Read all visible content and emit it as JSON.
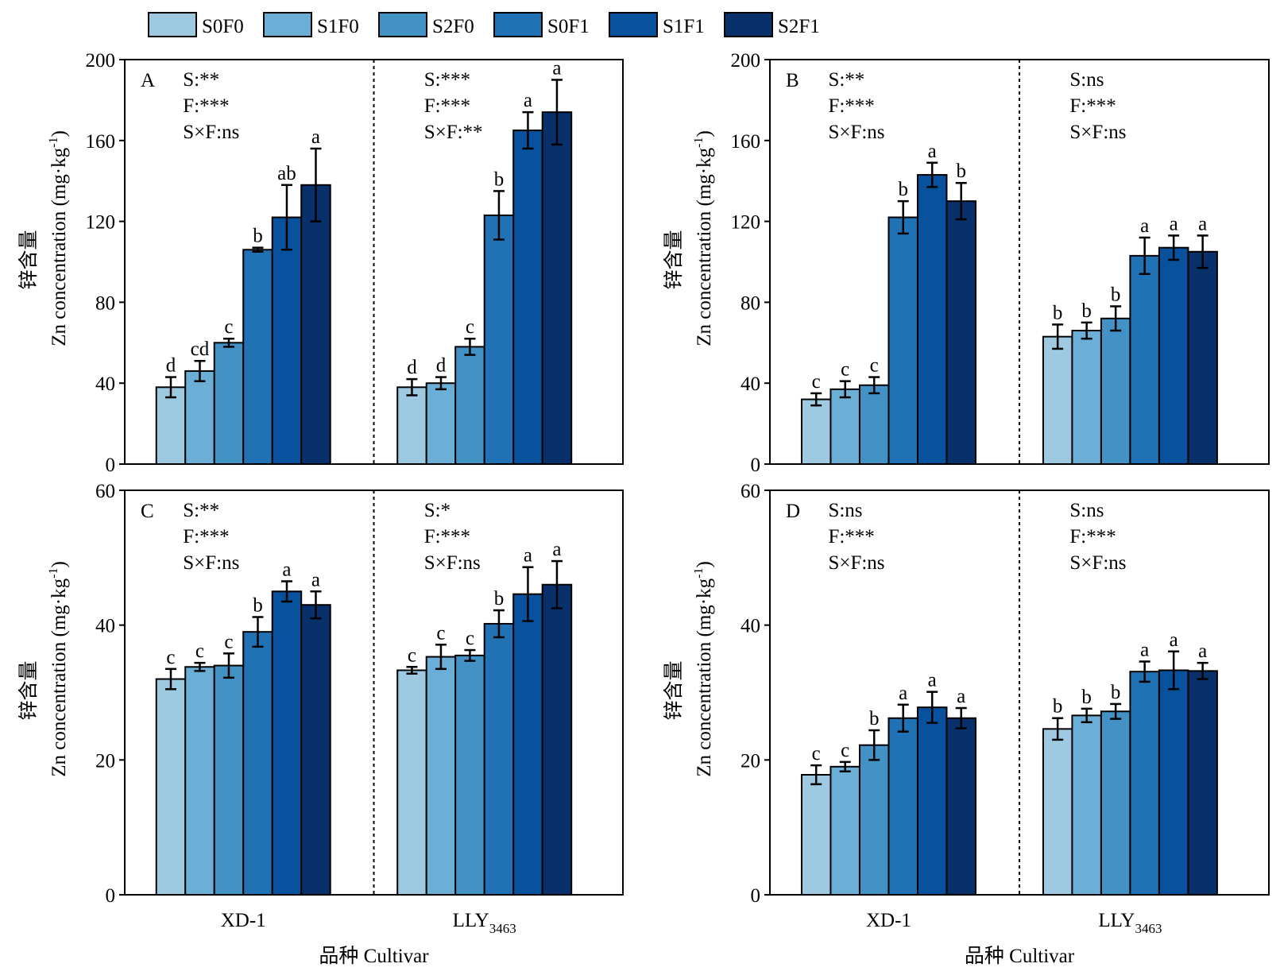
{
  "legend": [
    {
      "label": "S0F0",
      "color": "#9ecae1"
    },
    {
      "label": "S1F0",
      "color": "#6baed6"
    },
    {
      "label": "S2F0",
      "color": "#4292c6"
    },
    {
      "label": "S0F1",
      "color": "#2171b5"
    },
    {
      "label": "S1F1",
      "color": "#08519c"
    },
    {
      "label": "S2F1",
      "color": "#08306b"
    }
  ],
  "y_label_cn": "锌含量",
  "y_label_en": "Zn concentration (mg·kg",
  "y_label_sup": "-1",
  "x_label": "品种 Cultivar",
  "cultivars": [
    {
      "main": "XD-1",
      "sub": ""
    },
    {
      "main": "LLY",
      "sub": "3463"
    }
  ],
  "chart_data": [
    {
      "type": "bar",
      "panel": "A",
      "ylim": [
        0,
        200
      ],
      "yticks": [
        0,
        40,
        80,
        120,
        160,
        200
      ],
      "groups": [
        {
          "cultivar": "XD-1",
          "stats": [
            "S:**",
            "F:***",
            "S×F:ns"
          ],
          "values": [
            38,
            46,
            60,
            106,
            122,
            138
          ],
          "errors": [
            5,
            5,
            2,
            1,
            16,
            18
          ],
          "letters": [
            "d",
            "cd",
            "c",
            "b",
            "ab",
            "a"
          ]
        },
        {
          "cultivar": "LLY3463",
          "stats": [
            "S:***",
            "F:***",
            "S×F:**"
          ],
          "values": [
            38,
            40,
            58,
            123,
            165,
            174
          ],
          "errors": [
            4,
            3,
            4,
            12,
            9,
            16
          ],
          "letters": [
            "d",
            "d",
            "c",
            "b",
            "a",
            "a"
          ]
        }
      ]
    },
    {
      "type": "bar",
      "panel": "B",
      "ylim": [
        0,
        200
      ],
      "yticks": [
        0,
        40,
        80,
        120,
        160,
        200
      ],
      "groups": [
        {
          "cultivar": "XD-1",
          "stats": [
            "S:**",
            "F:***",
            "S×F:ns"
          ],
          "values": [
            32,
            37,
            39,
            122,
            143,
            130
          ],
          "errors": [
            3,
            4,
            4,
            8,
            6,
            9
          ],
          "letters": [
            "c",
            "c",
            "c",
            "b",
            "a",
            "b"
          ]
        },
        {
          "cultivar": "LLY3463",
          "stats": [
            "S:ns",
            "F:***",
            "S×F:ns"
          ],
          "values": [
            63,
            66,
            72,
            103,
            107,
            105
          ],
          "errors": [
            6,
            4,
            6,
            9,
            6,
            8
          ],
          "letters": [
            "b",
            "b",
            "b",
            "a",
            "a",
            "a"
          ]
        }
      ]
    },
    {
      "type": "bar",
      "panel": "C",
      "ylim": [
        0,
        60
      ],
      "yticks": [
        0,
        20,
        40,
        60
      ],
      "groups": [
        {
          "cultivar": "XD-1",
          "stats": [
            "S:**",
            "F:***",
            "S×F:ns"
          ],
          "values": [
            32,
            33.8,
            34,
            39,
            45,
            43
          ],
          "errors": [
            1.5,
            0.6,
            1.8,
            2.2,
            1.5,
            2
          ],
          "letters": [
            "c",
            "c",
            "c",
            "b",
            "a",
            "a"
          ]
        },
        {
          "cultivar": "LLY3463",
          "stats": [
            "S:*",
            "F:***",
            "S×F:ns"
          ],
          "values": [
            33.3,
            35.3,
            35.5,
            40.2,
            44.6,
            46
          ],
          "errors": [
            0.5,
            1.8,
            0.8,
            2,
            4,
            3.5
          ],
          "letters": [
            "c",
            "c",
            "c",
            "b",
            "a",
            "a"
          ]
        }
      ]
    },
    {
      "type": "bar",
      "panel": "D",
      "ylim": [
        0,
        60
      ],
      "yticks": [
        0,
        20,
        40,
        60
      ],
      "groups": [
        {
          "cultivar": "XD-1",
          "stats": [
            "S:ns",
            "F:***",
            "S×F:ns"
          ],
          "values": [
            17.8,
            19,
            22.2,
            26.2,
            27.8,
            26.2
          ],
          "errors": [
            1.4,
            0.7,
            2.2,
            2,
            2.3,
            1.5
          ],
          "letters": [
            "c",
            "c",
            "b",
            "a",
            "a",
            "a"
          ]
        },
        {
          "cultivar": "LLY3463",
          "stats": [
            "S:ns",
            "F:***",
            "S×F:ns"
          ],
          "values": [
            24.6,
            26.6,
            27.2,
            33.1,
            33.3,
            33.2
          ],
          "errors": [
            1.6,
            1,
            1.1,
            1.5,
            2.8,
            1.2
          ],
          "letters": [
            "b",
            "b",
            "b",
            "a",
            "a",
            "a"
          ]
        }
      ]
    }
  ]
}
